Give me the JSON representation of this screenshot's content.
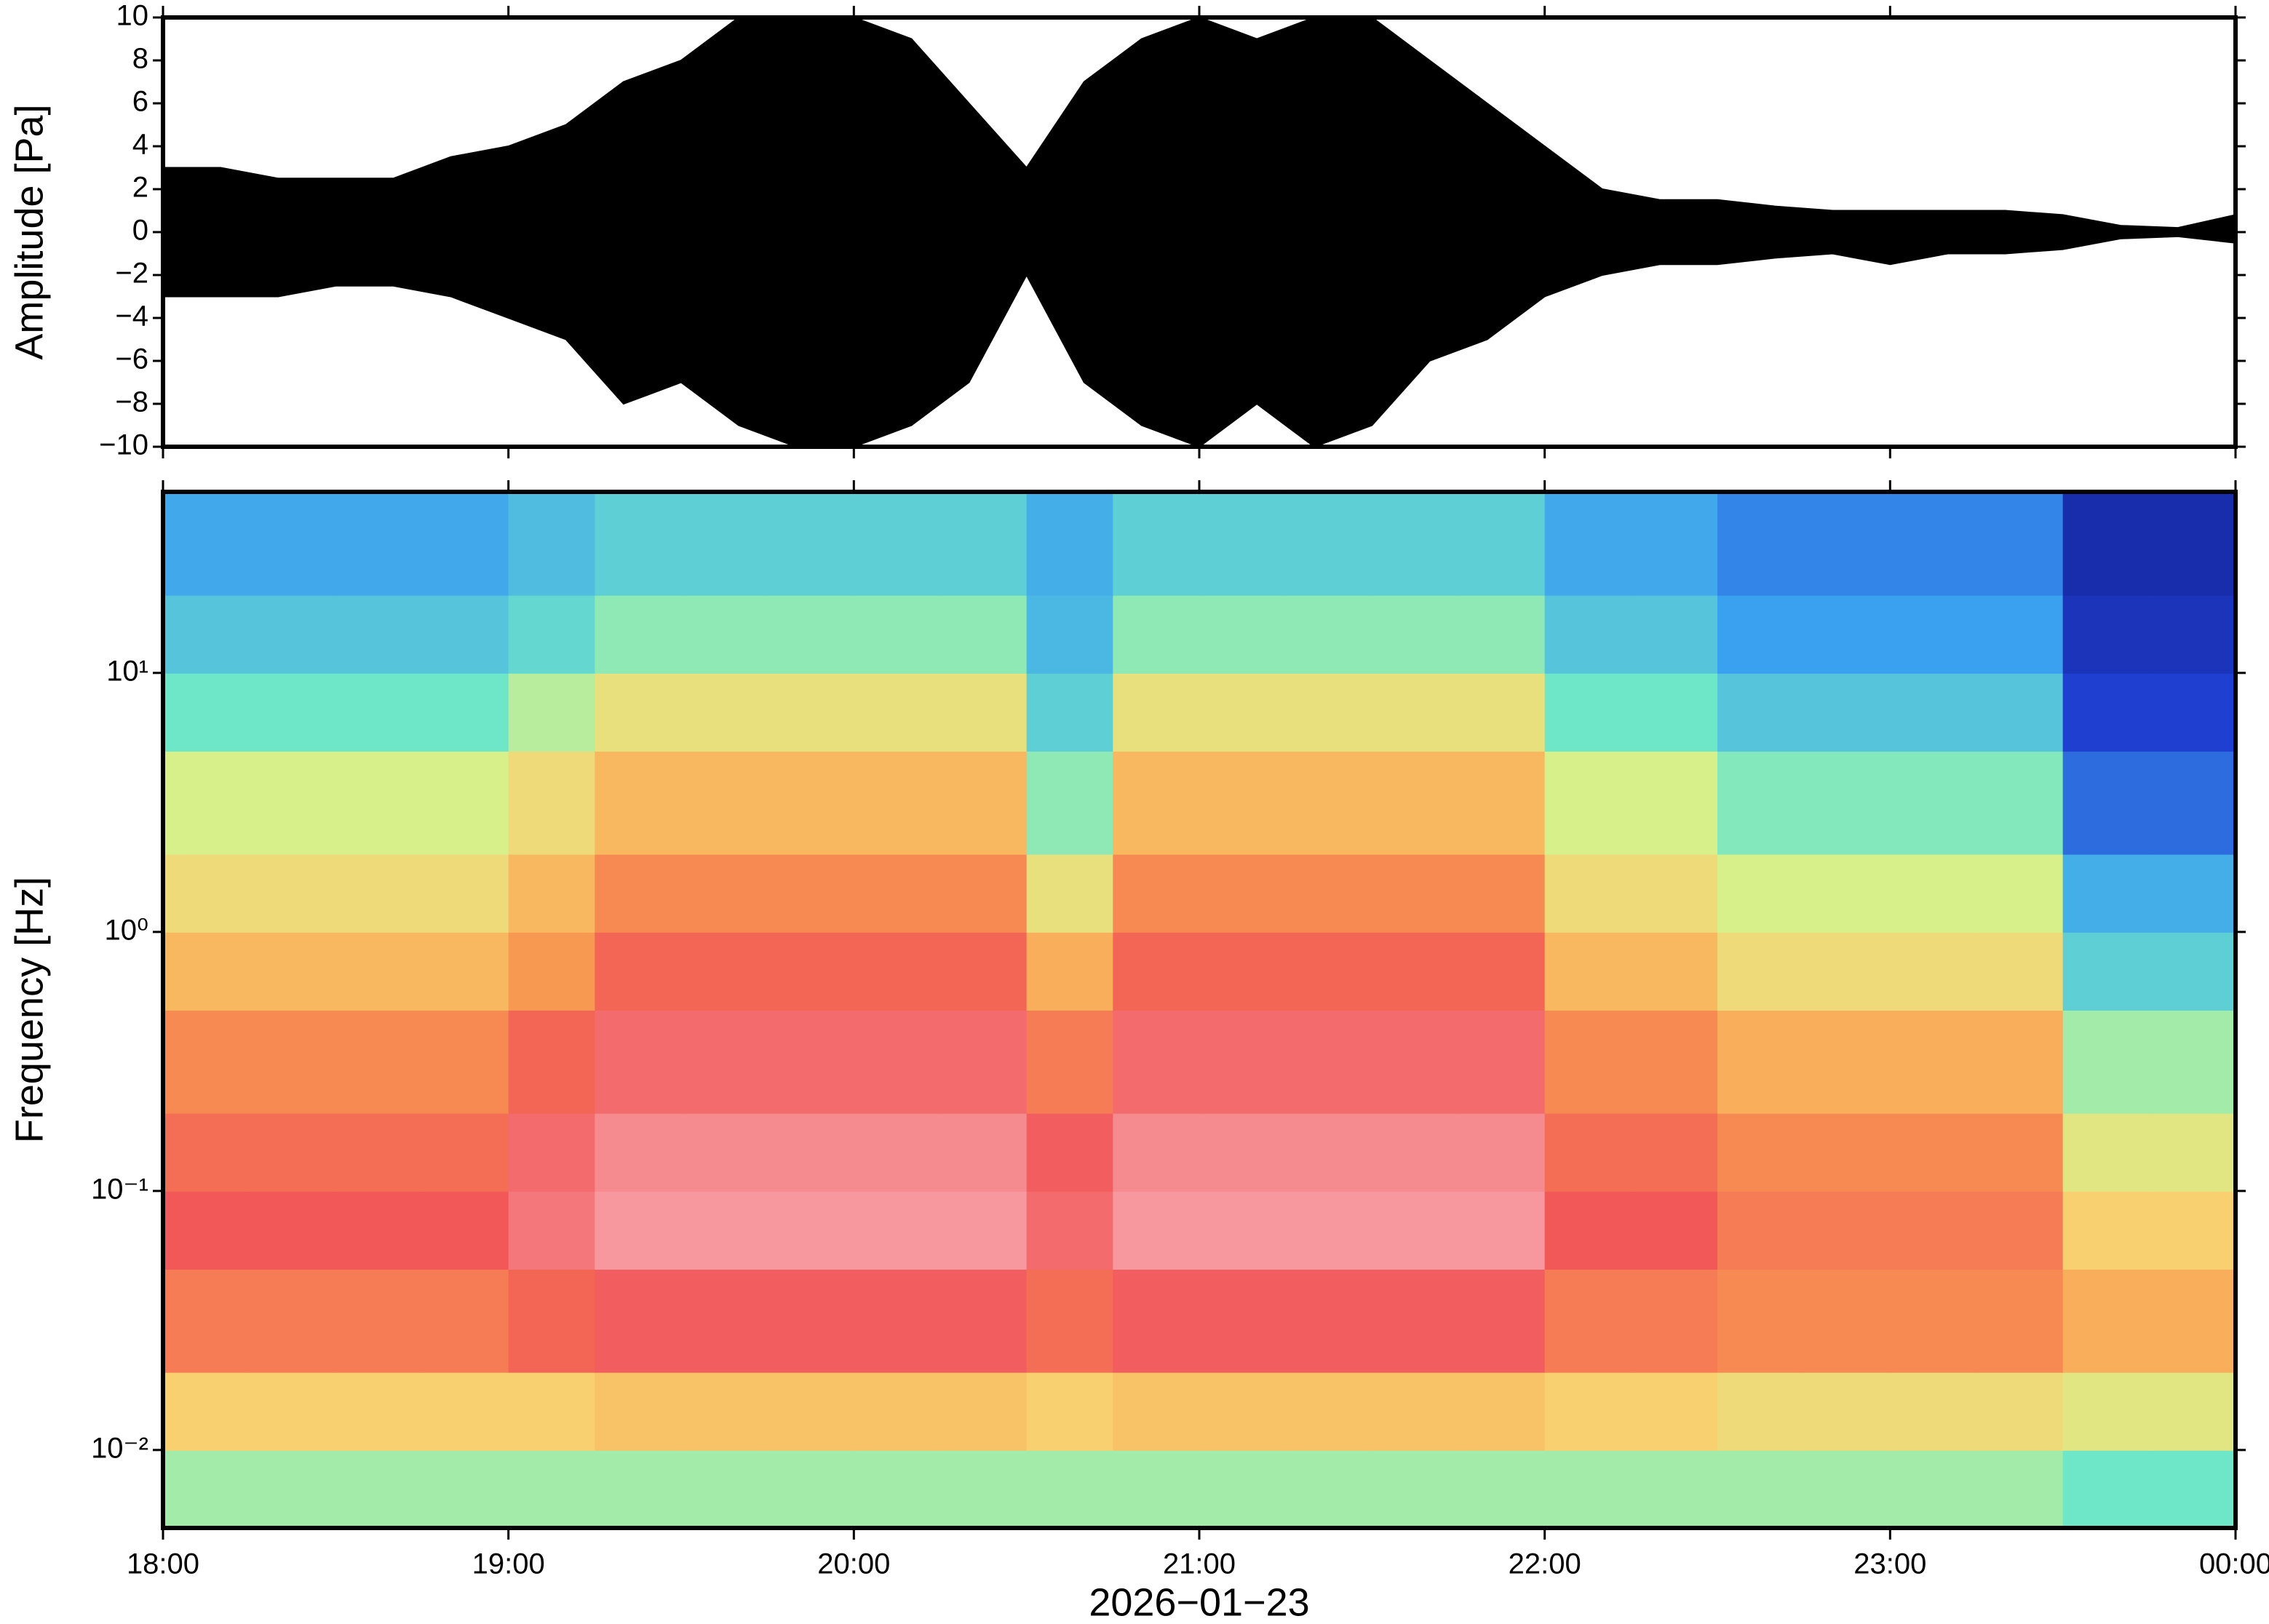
{
  "chart_data": [
    {
      "type": "envelope",
      "y_label": "Amplitude [Pa]",
      "xlim": [
        18,
        24
      ],
      "ylim": [
        -10,
        10
      ],
      "yticks": [
        {
          "value": -10,
          "label": "−10"
        },
        {
          "value": -8,
          "label": "−8"
        },
        {
          "value": -6,
          "label": "−6"
        },
        {
          "value": -4,
          "label": "−4"
        },
        {
          "value": -2,
          "label": "−2"
        },
        0,
        2,
        4,
        6,
        8,
        10
      ],
      "x": [
        18,
        18.1667,
        18.3333,
        18.5,
        18.6667,
        18.8333,
        19,
        19.1667,
        19.3333,
        19.5,
        19.6667,
        19.8333,
        20,
        20.1667,
        20.3333,
        20.5,
        20.6667,
        20.8333,
        21,
        21.1667,
        21.3333,
        21.5,
        21.6667,
        21.8333,
        22,
        22.1667,
        22.3333,
        22.5,
        22.6667,
        22.8333,
        23,
        23.1667,
        23.3333,
        23.5,
        23.6667,
        23.8333,
        24
      ],
      "series": [
        {
          "color": "#000000",
          "values": [
            3,
            3,
            2.5,
            2.5,
            2.5,
            3.5,
            4,
            5,
            7,
            8,
            10,
            10,
            10,
            9,
            6,
            3,
            7,
            9,
            10,
            9,
            10,
            10,
            8,
            6,
            4,
            2,
            1.5,
            1.5,
            1.2,
            1,
            1,
            1,
            1,
            0.8,
            0.3,
            0.2,
            0.8
          ]
        },
        {
          "color": "#000000",
          "values": [
            -3,
            -3,
            -3,
            -2.5,
            -2.5,
            -3,
            -4,
            -5,
            -8,
            -7,
            -9,
            -10,
            -10,
            -9,
            -7,
            -2,
            -7,
            -9,
            -10,
            -8,
            -10,
            -9,
            -6,
            -5,
            -3,
            -2,
            -1.5,
            -1.5,
            -1.2,
            -1,
            -1.5,
            -1,
            -1,
            -0.8,
            -0.3,
            -0.2,
            -0.5
          ]
        }
      ]
    },
    {
      "type": "heatmap",
      "y_label": "Frequency [Hz]",
      "x_label": "2026−01−23",
      "ylog": true,
      "xlim": [
        18,
        24
      ],
      "ylim": [
        0.005,
        50
      ],
      "xticks": [
        {
          "value": 18,
          "label": "18:00"
        },
        {
          "value": 19,
          "label": "19:00"
        },
        {
          "value": 20,
          "label": "20:00"
        },
        {
          "value": 21,
          "label": "21:00"
        },
        {
          "value": 22,
          "label": "22:00"
        },
        {
          "value": 23,
          "label": "23:00"
        },
        {
          "value": 24,
          "label": "00:00"
        }
      ],
      "yticks": [
        {
          "value": 0.01,
          "label": "10⁻²"
        },
        {
          "value": 0.1,
          "label": "10⁻¹"
        },
        {
          "value": 1,
          "label": "10⁰"
        },
        {
          "value": 10,
          "label": "10¹"
        }
      ],
      "x_edges": [
        18,
        18.25,
        18.5,
        18.75,
        19,
        19.25,
        19.5,
        19.75,
        20,
        20.25,
        20.5,
        20.75,
        21,
        21.25,
        21.5,
        21.75,
        22,
        22.25,
        22.5,
        22.75,
        23,
        23.25,
        23.5,
        23.75,
        24
      ],
      "y_edges": [
        0.005,
        0.01,
        0.02,
        0.05,
        0.1,
        0.2,
        0.5,
        1,
        2,
        5,
        10,
        20,
        50
      ],
      "colormap": [
        {
          "level": 0,
          "color": "#0a0a60"
        },
        {
          "level": 0.15,
          "color": "#1f3fd0"
        },
        {
          "level": 0.3,
          "color": "#3aa0f0"
        },
        {
          "level": 0.45,
          "color": "#6ee6c8"
        },
        {
          "level": 0.55,
          "color": "#d8f08a"
        },
        {
          "level": 0.65,
          "color": "#f8d070"
        },
        {
          "level": 0.75,
          "color": "#f8a050"
        },
        {
          "level": 0.85,
          "color": "#f25858"
        },
        {
          "level": 1,
          "color": "#f8b8c0"
        }
      ],
      "z": [
        [
          0.5,
          0.5,
          0.5,
          0.5,
          0.5,
          0.5,
          0.5,
          0.5,
          0.5,
          0.5,
          0.5,
          0.5,
          0.5,
          0.5,
          0.5,
          0.5,
          0.5,
          0.5,
          0.5,
          0.5,
          0.5,
          0.5,
          0.45,
          0.45
        ],
        [
          0.65,
          0.65,
          0.65,
          0.65,
          0.65,
          0.68,
          0.68,
          0.68,
          0.68,
          0.68,
          0.65,
          0.68,
          0.68,
          0.68,
          0.68,
          0.68,
          0.65,
          0.65,
          0.62,
          0.62,
          0.62,
          0.62,
          0.58,
          0.58
        ],
        [
          0.8,
          0.8,
          0.8,
          0.8,
          0.83,
          0.86,
          0.86,
          0.86,
          0.86,
          0.86,
          0.82,
          0.86,
          0.86,
          0.86,
          0.86,
          0.86,
          0.8,
          0.8,
          0.78,
          0.78,
          0.78,
          0.78,
          0.72,
          0.72
        ],
        [
          0.85,
          0.85,
          0.85,
          0.85,
          0.9,
          0.95,
          0.95,
          0.95,
          0.95,
          0.95,
          0.88,
          0.95,
          0.95,
          0.95,
          0.95,
          0.95,
          0.85,
          0.85,
          0.8,
          0.8,
          0.8,
          0.8,
          0.65,
          0.65
        ],
        [
          0.82,
          0.82,
          0.82,
          0.82,
          0.88,
          0.93,
          0.93,
          0.93,
          0.93,
          0.93,
          0.86,
          0.93,
          0.93,
          0.93,
          0.93,
          0.93,
          0.82,
          0.82,
          0.78,
          0.78,
          0.78,
          0.78,
          0.58,
          0.58
        ],
        [
          0.78,
          0.78,
          0.78,
          0.78,
          0.83,
          0.88,
          0.88,
          0.88,
          0.88,
          0.88,
          0.8,
          0.88,
          0.88,
          0.88,
          0.88,
          0.88,
          0.78,
          0.78,
          0.72,
          0.72,
          0.72,
          0.72,
          0.5,
          0.5
        ],
        [
          0.7,
          0.7,
          0.7,
          0.7,
          0.76,
          0.83,
          0.83,
          0.83,
          0.83,
          0.83,
          0.72,
          0.83,
          0.83,
          0.83,
          0.83,
          0.83,
          0.7,
          0.7,
          0.62,
          0.62,
          0.62,
          0.62,
          0.4,
          0.4
        ],
        [
          0.62,
          0.62,
          0.62,
          0.62,
          0.7,
          0.78,
          0.78,
          0.78,
          0.78,
          0.78,
          0.6,
          0.78,
          0.78,
          0.78,
          0.78,
          0.78,
          0.62,
          0.62,
          0.55,
          0.55,
          0.55,
          0.55,
          0.33,
          0.33
        ],
        [
          0.55,
          0.55,
          0.55,
          0.55,
          0.62,
          0.7,
          0.7,
          0.7,
          0.7,
          0.7,
          0.48,
          0.7,
          0.7,
          0.7,
          0.7,
          0.7,
          0.55,
          0.55,
          0.47,
          0.47,
          0.47,
          0.47,
          0.22,
          0.22
        ],
        [
          0.45,
          0.45,
          0.45,
          0.45,
          0.52,
          0.6,
          0.6,
          0.6,
          0.6,
          0.6,
          0.4,
          0.6,
          0.6,
          0.6,
          0.6,
          0.6,
          0.45,
          0.45,
          0.38,
          0.38,
          0.38,
          0.38,
          0.15,
          0.15
        ],
        [
          0.38,
          0.38,
          0.38,
          0.38,
          0.42,
          0.48,
          0.48,
          0.48,
          0.48,
          0.48,
          0.35,
          0.48,
          0.48,
          0.48,
          0.48,
          0.48,
          0.38,
          0.38,
          0.3,
          0.3,
          0.3,
          0.3,
          0.12,
          0.12
        ],
        [
          0.32,
          0.32,
          0.32,
          0.32,
          0.36,
          0.4,
          0.4,
          0.4,
          0.4,
          0.4,
          0.33,
          0.4,
          0.4,
          0.4,
          0.4,
          0.4,
          0.32,
          0.32,
          0.26,
          0.26,
          0.26,
          0.26,
          0.1,
          0.1
        ]
      ]
    }
  ]
}
